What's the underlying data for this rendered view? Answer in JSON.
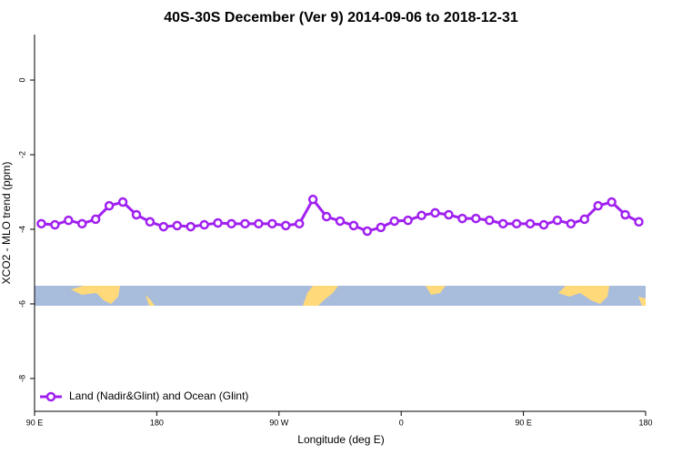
{
  "chart_data": {
    "type": "line",
    "title": "40S-30S December (Ver 9)   2014-09-06 to 2018-12-31",
    "x_label": "Longitude (deg E)",
    "y_label": "XCO2 - MLO trend (ppm)",
    "xlim": [
      90,
      540
    ],
    "ylim": [
      -8.88,
      1.22
    ],
    "xticks": [
      {
        "value": 90,
        "label": "90 E"
      },
      {
        "value": 180,
        "label": "180"
      },
      {
        "value": 270,
        "label": "90 W"
      },
      {
        "value": 360,
        "label": "0"
      },
      {
        "value": 450,
        "label": "90 E"
      },
      {
        "value": 540,
        "label": "180"
      }
    ],
    "yticks": [
      0,
      -2,
      -4,
      -6,
      -8
    ],
    "legend_position": "bottom-left",
    "x": [
      95,
      105,
      115,
      125,
      135,
      145,
      155,
      165,
      175,
      185,
      195,
      205,
      215,
      225,
      235,
      245,
      255,
      265,
      275,
      285,
      295,
      305,
      315,
      325,
      335,
      345,
      355,
      365,
      375,
      385,
      395,
      405,
      415,
      425,
      435,
      445,
      455,
      465,
      475,
      485,
      495,
      505,
      515,
      525,
      535
    ],
    "series": [
      {
        "name": "Land (Nadir&Glint) and Ocean (Glint)",
        "color": "#a020f0",
        "values": [
          -3.85,
          -3.88,
          -3.76,
          -3.85,
          -3.73,
          -3.37,
          -3.27,
          -3.61,
          -3.8,
          -3.93,
          -3.9,
          -3.93,
          -3.88,
          -3.83,
          -3.85,
          -3.85,
          -3.85,
          -3.85,
          -3.9,
          -3.85,
          -3.2,
          -3.66,
          -3.78,
          -3.9,
          -4.05,
          -3.95,
          -3.78,
          -3.76,
          -3.63,
          -3.56,
          -3.61,
          -3.71,
          -3.71,
          -3.76,
          -3.85,
          -3.85,
          -3.85,
          -3.88,
          -3.76,
          -3.85,
          -3.73,
          -3.37,
          -3.27,
          -3.61,
          -3.8
        ]
      }
    ]
  }
}
